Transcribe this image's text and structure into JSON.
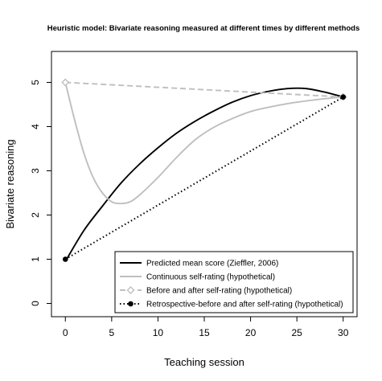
{
  "chart_data": {
    "type": "line",
    "title": "Heuristic model: Bivariate reasoning measured at different times by different methods",
    "xlabel": "Teaching session",
    "ylabel": "Bivariate reasoning",
    "xlim": [
      -1.5,
      31.5
    ],
    "ylim": [
      -0.3,
      5.7
    ],
    "x_ticks": [
      0,
      5,
      10,
      15,
      20,
      25,
      30
    ],
    "y_ticks": [
      0,
      1,
      2,
      3,
      4,
      5
    ],
    "grid": false,
    "legend_position": "bottom-right",
    "series": [
      {
        "name": "Predicted mean score (Zieffler, 2006)",
        "color": "#000000",
        "style": "solid",
        "x": [
          0,
          2,
          4,
          6,
          8,
          10,
          12,
          14,
          16,
          18,
          20,
          22,
          24,
          26,
          28,
          30
        ],
        "y": [
          0.95,
          1.65,
          2.2,
          2.72,
          3.15,
          3.52,
          3.85,
          4.12,
          4.35,
          4.55,
          4.7,
          4.8,
          4.86,
          4.86,
          4.78,
          4.67
        ]
      },
      {
        "name": "Continuous self-rating (hypothetical)",
        "color": "#bfbfbf",
        "style": "solid",
        "x": [
          0,
          1,
          2,
          3,
          4,
          5,
          6,
          7,
          8,
          10,
          12,
          14,
          16,
          18,
          20,
          22,
          24,
          26,
          28,
          30
        ],
        "y": [
          5.0,
          4.15,
          3.4,
          2.85,
          2.5,
          2.3,
          2.26,
          2.3,
          2.45,
          2.85,
          3.3,
          3.7,
          3.98,
          4.18,
          4.34,
          4.44,
          4.52,
          4.58,
          4.63,
          4.67
        ]
      },
      {
        "name": "Before and after self-rating (hypothetical)",
        "color": "#bfbfbf",
        "style": "dashed",
        "marker": "diamond",
        "x": [
          0,
          30
        ],
        "y": [
          5.0,
          4.67
        ]
      },
      {
        "name": "Retrospective-before and after self-rating (hypothetical)",
        "color": "#000000",
        "style": "dotted",
        "marker": "dot",
        "x": [
          0,
          30
        ],
        "y": [
          1.0,
          4.67
        ]
      }
    ]
  }
}
